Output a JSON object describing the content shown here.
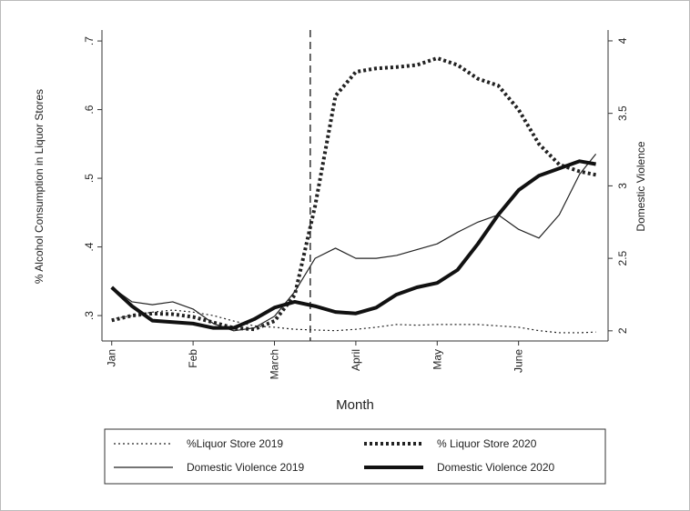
{
  "chart_data": {
    "type": "line",
    "xlabel": "Month",
    "ylabel": "% Alcohol Consumption in Liquor Stores",
    "y2label": "Domestic Violence",
    "x": [
      1,
      1.25,
      1.5,
      1.75,
      2,
      2.25,
      2.5,
      2.75,
      3,
      3.25,
      3.5,
      3.75,
      4,
      4.25,
      4.5,
      4.75,
      5,
      5.25,
      5.5,
      5.75,
      6,
      6.25,
      6.5,
      6.75,
      6.95
    ],
    "xlim": [
      0.88,
      7.1
    ],
    "xticks": [
      {
        "value": 1,
        "label": "Jan"
      },
      {
        "value": 2,
        "label": "Feb"
      },
      {
        "value": 3,
        "label": "March"
      },
      {
        "value": 4,
        "label": "April"
      },
      {
        "value": 5,
        "label": "May"
      },
      {
        "value": 6,
        "label": "June"
      }
    ],
    "ylim": [
      0.263,
      0.716
    ],
    "yticks": [
      {
        "value": 0.3,
        "label": ".3"
      },
      {
        "value": 0.4,
        "label": ".4"
      },
      {
        "value": 0.5,
        "label": ".5"
      },
      {
        "value": 0.6,
        "label": ".6"
      },
      {
        "value": 0.7,
        "label": ".7"
      }
    ],
    "y2lim": [
      1.93,
      4.075
    ],
    "y2ticks": [
      2,
      2.5,
      3,
      3.5,
      4
    ],
    "vline": 3.44,
    "series": [
      {
        "name": "%Liquor Store 2019",
        "color": "#222222",
        "width": 1.2,
        "dash": "2 3",
        "values": [
          0.295,
          0.3,
          0.305,
          0.308,
          0.305,
          0.3,
          0.292,
          0.285,
          0.283,
          0.28,
          0.279,
          0.278,
          0.28,
          0.283,
          0.287,
          0.286,
          0.287,
          0.287,
          0.287,
          0.285,
          0.283,
          0.278,
          0.275,
          0.275,
          0.276
        ]
      },
      {
        "name": "% Liquor Store 2020",
        "color": "#222222",
        "width": 4,
        "dash": "3 3",
        "values": [
          0.293,
          0.3,
          0.303,
          0.302,
          0.298,
          0.29,
          0.282,
          0.28,
          0.292,
          0.33,
          0.46,
          0.62,
          0.655,
          0.66,
          0.662,
          0.665,
          0.675,
          0.665,
          0.645,
          0.635,
          0.6,
          0.55,
          0.52,
          0.51,
          0.505
        ]
      },
      {
        "name": "Domestic Violence 2019",
        "color": "#222222",
        "width": 1.2,
        "axis": "y2",
        "values": [
          2.3,
          2.2,
          2.18,
          2.2,
          2.15,
          2.05,
          2.0,
          2.02,
          2.1,
          2.27,
          2.5,
          2.57,
          2.5,
          2.5,
          2.52,
          2.56,
          2.6,
          2.68,
          2.75,
          2.8,
          2.7,
          2.64,
          2.8,
          3.08,
          3.22
        ]
      },
      {
        "name": "Domestic Violence 2020",
        "color": "#111111",
        "width": 4,
        "axis": "y2",
        "values": [
          2.3,
          2.17,
          2.07,
          2.06,
          2.05,
          2.02,
          2.02,
          2.08,
          2.16,
          2.2,
          2.17,
          2.13,
          2.12,
          2.16,
          2.25,
          2.3,
          2.33,
          2.42,
          2.6,
          2.8,
          2.97,
          3.07,
          3.12,
          3.17,
          3.15
        ]
      }
    ]
  }
}
